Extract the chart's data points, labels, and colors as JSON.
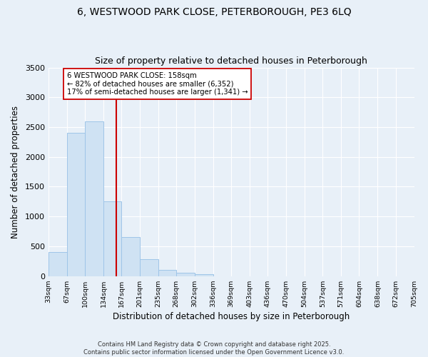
{
  "title_line1": "6, WESTWOOD PARK CLOSE, PETERBOROUGH, PE3 6LQ",
  "title_line2": "Size of property relative to detached houses in Peterborough",
  "xlabel": "Distribution of detached houses by size in Peterborough",
  "ylabel": "Number of detached properties",
  "annotation_line1": "6 WESTWOOD PARK CLOSE: 158sqm",
  "annotation_line2": "← 82% of detached houses are smaller (6,352)",
  "annotation_line3": "17% of semi-detached houses are larger (1,341) →",
  "footer_line1": "Contains HM Land Registry data © Crown copyright and database right 2025.",
  "footer_line2": "Contains public sector information licensed under the Open Government Licence v3.0.",
  "property_size": 158,
  "bin_edges": [
    33,
    67,
    100,
    134,
    167,
    201,
    235,
    268,
    302,
    336,
    369,
    403,
    436,
    470,
    504,
    537,
    571,
    604,
    638,
    672,
    705
  ],
  "bin_counts": [
    400,
    2400,
    2600,
    1250,
    650,
    280,
    100,
    55,
    30,
    0,
    0,
    0,
    0,
    0,
    0,
    0,
    0,
    0,
    0,
    0
  ],
  "bar_facecolor": "#cfe2f3",
  "bar_edgecolor": "#9fc5e8",
  "vline_color": "#cc0000",
  "annotation_box_edgecolor": "#cc0000",
  "annotation_box_facecolor": "#ffffff",
  "background_color": "#e8f0f8",
  "plot_bg_color": "#e8f0f8",
  "ylim": [
    0,
    3500
  ],
  "yticks": [
    0,
    500,
    1000,
    1500,
    2000,
    2500,
    3000,
    3500
  ]
}
